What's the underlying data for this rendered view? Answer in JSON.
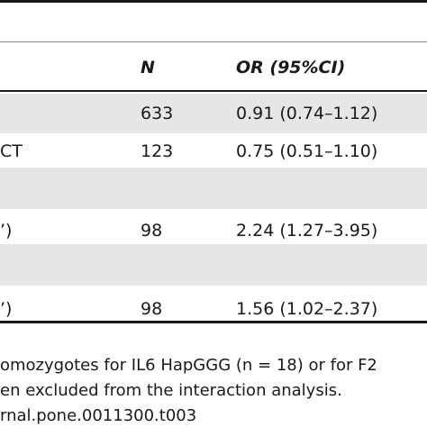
{
  "header": {
    "n_label": "N",
    "or_label": "OR (95%CI)"
  },
  "rows": [
    {
      "label": "",
      "n": "633",
      "or": "0.91 (0.74–1.12)",
      "shaded": true
    },
    {
      "label": "CT",
      "n": "123",
      "or": "0.75 (0.51–1.10)",
      "shaded": false
    },
    {
      "label": "",
      "n": "",
      "or": "",
      "shaded": true
    },
    {
      "label": "’)",
      "n": "98",
      "or": "2.24 (1.27–3.95)",
      "shaded": false
    },
    {
      "label": "",
      "n": "",
      "or": "",
      "shaded": true
    },
    {
      "label": "’)",
      "n": "98",
      "or": "1.56 (1.02–2.37)",
      "shaded": false
    }
  ],
  "footnote": {
    "line1": "omozygotes for IL6 HapGGG (n = 18) or for F2",
    "line2": "en excluded from the interaction analysis.",
    "line3": "rnal.pone.0011300.t003"
  }
}
